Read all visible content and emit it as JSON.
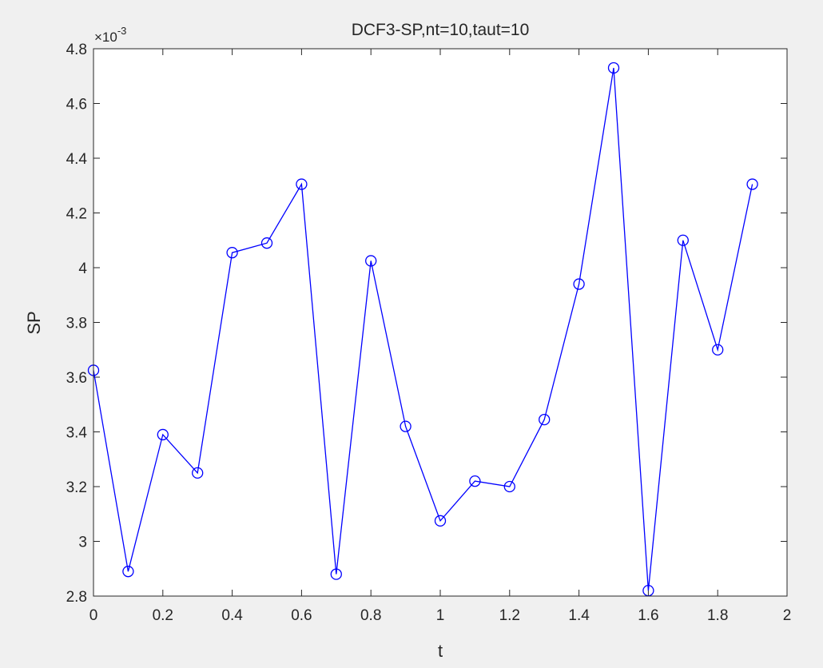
{
  "chart_data": {
    "type": "line",
    "title": "DCF3-SP,nt=10,taut=10",
    "xlabel": "t",
    "ylabel": "SP",
    "exponent_label": {
      "base": "×10",
      "exp": "-3"
    },
    "xlim": [
      0,
      2
    ],
    "ylim": [
      2.8,
      4.8
    ],
    "xticks": [
      0,
      0.2,
      0.4,
      0.6,
      0.8,
      1,
      1.2,
      1.4,
      1.6,
      1.8,
      2
    ],
    "xtick_labels": [
      "0",
      "0.2",
      "0.4",
      "0.6",
      "0.8",
      "1",
      "1.2",
      "1.4",
      "1.6",
      "1.8",
      "2"
    ],
    "yticks": [
      2.8,
      3,
      3.2,
      3.4,
      3.6,
      3.8,
      4,
      4.2,
      4.4,
      4.6,
      4.8
    ],
    "ytick_labels": [
      "2.8",
      "3",
      "3.2",
      "3.4",
      "3.6",
      "3.8",
      "4",
      "4.2",
      "4.4",
      "4.6",
      "4.8"
    ],
    "grid": false,
    "series": [
      {
        "color": "#0000ff",
        "marker": "circle",
        "x": [
          0,
          0.1,
          0.2,
          0.3,
          0.4,
          0.5,
          0.6,
          0.7,
          0.8,
          0.9,
          1.0,
          1.1,
          1.2,
          1.3,
          1.4,
          1.5,
          1.6,
          1.7,
          1.8,
          1.9
        ],
        "y": [
          3.625,
          2.89,
          3.39,
          3.25,
          4.055,
          4.09,
          4.305,
          2.88,
          4.025,
          3.42,
          3.075,
          3.22,
          3.2,
          3.445,
          3.94,
          4.73,
          2.82,
          4.1,
          3.7,
          4.305
        ]
      }
    ]
  }
}
